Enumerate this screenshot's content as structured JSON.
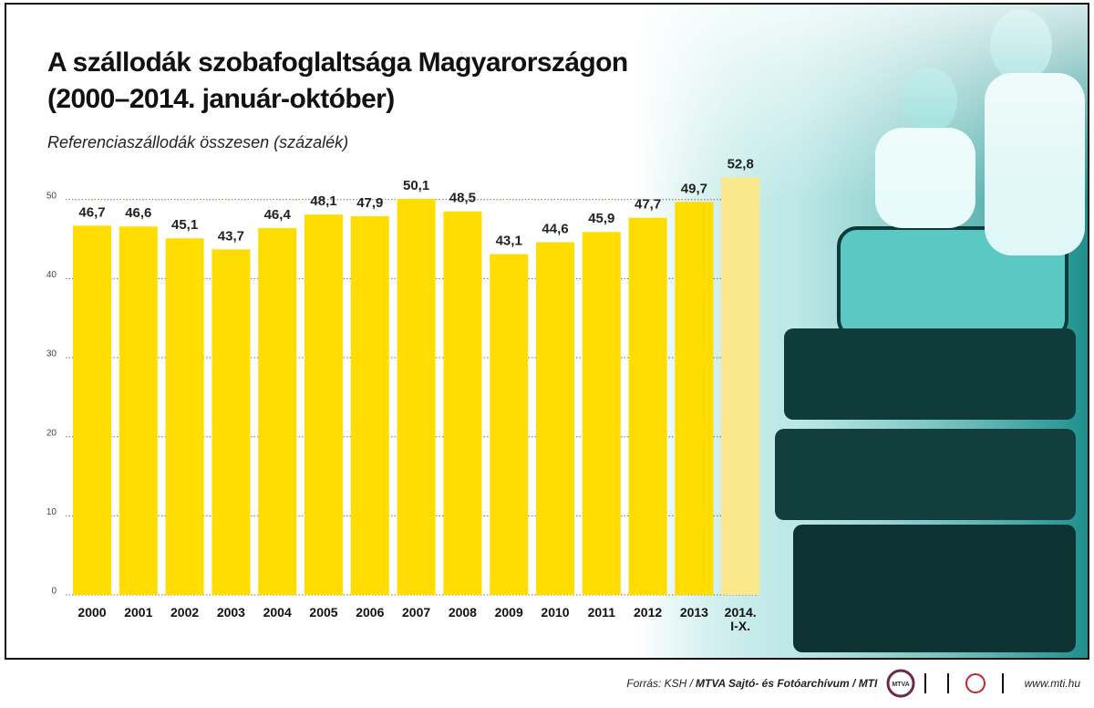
{
  "chart_data": {
    "type": "bar",
    "title": [
      "A szállodák szobafoglaltsága Magyarországon",
      "(2000–2014. január-október)"
    ],
    "subtitle": "Referenciaszállodák összesen (százalék)",
    "categories": [
      "2000",
      "2001",
      "2002",
      "2003",
      "2004",
      "2005",
      "2006",
      "2007",
      "2008",
      "2009",
      "2010",
      "2011",
      "2012",
      "2013",
      "2014. I-X."
    ],
    "values": [
      46.7,
      46.6,
      45.1,
      43.7,
      46.4,
      48.1,
      47.9,
      50.1,
      48.5,
      43.1,
      44.6,
      45.9,
      47.7,
      49.7,
      52.8
    ],
    "value_labels": [
      "46,7",
      "46,6",
      "45,1",
      "43,7",
      "46,4",
      "48,1",
      "47,9",
      "50,1",
      "48,5",
      "43,1",
      "44,6",
      "45,9",
      "47,7",
      "49,7",
      "52,8"
    ],
    "colors": [
      "#ffdd00",
      "#ffdd00",
      "#ffdd00",
      "#ffdd00",
      "#ffdd00",
      "#ffdd00",
      "#ffdd00",
      "#ffdd00",
      "#ffdd00",
      "#ffdd00",
      "#ffdd00",
      "#ffdd00",
      "#ffdd00",
      "#ffdd00",
      "#fbe78c"
    ],
    "ylim": [
      0,
      55
    ],
    "yticks": [
      0,
      10,
      20,
      30,
      40,
      50
    ],
    "grid": true
  },
  "footer": {
    "source_prefix": "Forrás: KSH /",
    "source_main": "MTVA Sajtó- és Fotóarchívum / MTI",
    "logo": "MTVA",
    "url": "www.mti.hu"
  }
}
